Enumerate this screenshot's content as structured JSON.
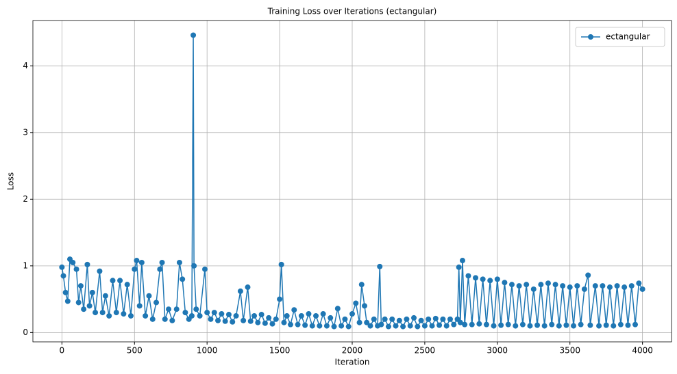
{
  "chart_data": {
    "type": "line",
    "title": "Training Loss over Iterations (ectangular)",
    "x_label": "Iteration",
    "y_label": "Loss",
    "legend": "upper right",
    "grid": true,
    "xlim": [
      -200,
      4200
    ],
    "ylim": [
      -0.14,
      4.68
    ],
    "xticks": [
      0,
      500,
      1000,
      1500,
      2000,
      2500,
      3000,
      3500,
      4000
    ],
    "yticks": [
      0,
      1,
      2,
      3,
      4
    ],
    "series": [
      {
        "name": "ectangular",
        "color": "#1f77b4",
        "x": [
          0,
          10,
          25,
          40,
          55,
          75,
          100,
          115,
          130,
          150,
          175,
          190,
          210,
          230,
          260,
          280,
          300,
          325,
          350,
          375,
          400,
          425,
          450,
          475,
          500,
          515,
          535,
          550,
          575,
          600,
          625,
          650,
          675,
          690,
          710,
          735,
          760,
          790,
          810,
          830,
          850,
          875,
          895,
          905,
          910,
          925,
          950,
          985,
          1000,
          1025,
          1050,
          1075,
          1100,
          1125,
          1150,
          1175,
          1200,
          1230,
          1250,
          1280,
          1300,
          1325,
          1350,
          1375,
          1400,
          1425,
          1450,
          1475,
          1500,
          1512,
          1530,
          1550,
          1575,
          1600,
          1625,
          1650,
          1675,
          1700,
          1725,
          1750,
          1775,
          1800,
          1825,
          1850,
          1875,
          1900,
          1925,
          1950,
          1975,
          2000,
          2025,
          2050,
          2065,
          2085,
          2100,
          2125,
          2150,
          2175,
          2190,
          2200,
          2225,
          2250,
          2275,
          2300,
          2325,
          2350,
          2375,
          2400,
          2425,
          2450,
          2475,
          2500,
          2525,
          2550,
          2575,
          2600,
          2625,
          2650,
          2675,
          2700,
          2725,
          2735,
          2745,
          2760,
          2775,
          2800,
          2825,
          2850,
          2875,
          2900,
          2925,
          2950,
          2975,
          3000,
          3025,
          3050,
          3075,
          3100,
          3125,
          3150,
          3175,
          3200,
          3225,
          3250,
          3275,
          3300,
          3325,
          3350,
          3375,
          3400,
          3425,
          3450,
          3475,
          3500,
          3525,
          3550,
          3575,
          3600,
          3625,
          3640,
          3675,
          3700,
          3725,
          3750,
          3775,
          3800,
          3825,
          3850,
          3875,
          3900,
          3925,
          3950,
          3975,
          4000
        ],
        "values": [
          0.98,
          0.85,
          0.6,
          0.47,
          1.1,
          1.05,
          0.95,
          0.45,
          0.7,
          0.35,
          1.02,
          0.4,
          0.6,
          0.3,
          0.92,
          0.3,
          0.55,
          0.25,
          0.78,
          0.3,
          0.78,
          0.28,
          0.72,
          0.25,
          0.95,
          1.08,
          0.4,
          1.05,
          0.25,
          0.55,
          0.2,
          0.45,
          0.95,
          1.05,
          0.2,
          0.35,
          0.18,
          0.35,
          1.05,
          0.8,
          0.3,
          0.2,
          0.25,
          4.46,
          1.0,
          0.35,
          0.25,
          0.95,
          0.3,
          0.2,
          0.3,
          0.18,
          0.28,
          0.17,
          0.27,
          0.16,
          0.25,
          0.62,
          0.18,
          0.68,
          0.17,
          0.25,
          0.15,
          0.27,
          0.14,
          0.22,
          0.13,
          0.2,
          0.5,
          1.02,
          0.15,
          0.25,
          0.12,
          0.34,
          0.12,
          0.25,
          0.11,
          0.28,
          0.1,
          0.25,
          0.1,
          0.28,
          0.1,
          0.22,
          0.09,
          0.36,
          0.1,
          0.2,
          0.09,
          0.28,
          0.44,
          0.15,
          0.72,
          0.4,
          0.15,
          0.1,
          0.2,
          0.1,
          0.99,
          0.12,
          0.2,
          0.09,
          0.2,
          0.1,
          0.18,
          0.09,
          0.2,
          0.1,
          0.22,
          0.09,
          0.18,
          0.1,
          0.2,
          0.1,
          0.21,
          0.11,
          0.2,
          0.1,
          0.2,
          0.12,
          0.2,
          0.98,
          0.15,
          1.08,
          0.12,
          0.85,
          0.12,
          0.82,
          0.13,
          0.8,
          0.12,
          0.78,
          0.1,
          0.8,
          0.11,
          0.75,
          0.12,
          0.72,
          0.1,
          0.7,
          0.12,
          0.72,
          0.1,
          0.65,
          0.11,
          0.72,
          0.1,
          0.74,
          0.12,
          0.72,
          0.1,
          0.7,
          0.11,
          0.68,
          0.1,
          0.7,
          0.12,
          0.65,
          0.86,
          0.11,
          0.7,
          0.1,
          0.7,
          0.11,
          0.68,
          0.1,
          0.7,
          0.12,
          0.68,
          0.11,
          0.7,
          0.12,
          0.74,
          0.65
        ]
      }
    ]
  }
}
